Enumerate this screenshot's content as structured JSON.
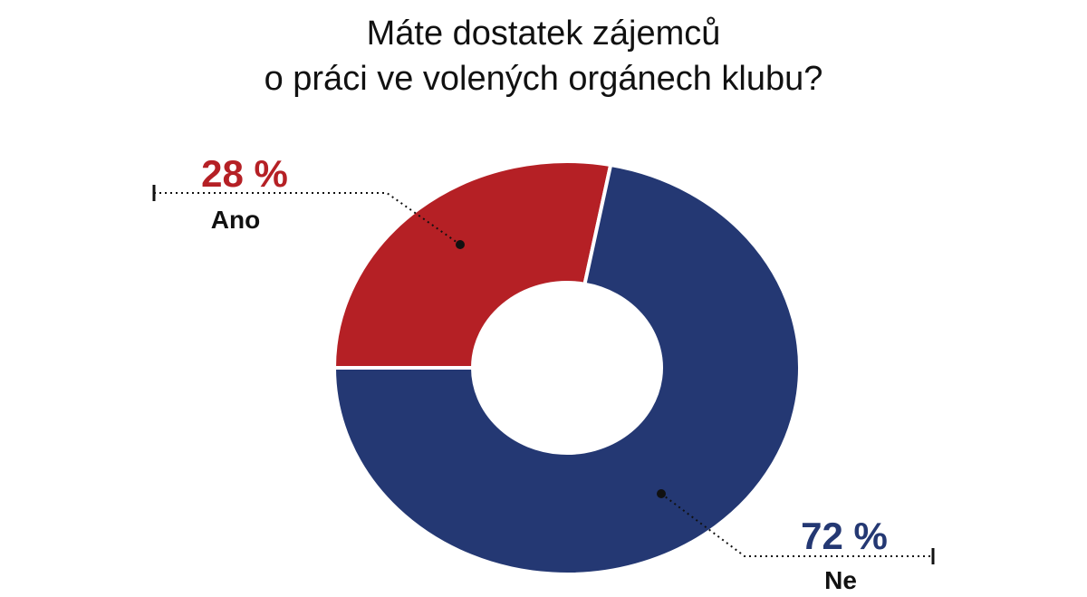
{
  "chart_data": {
    "type": "pie",
    "title_lines": [
      "Máte dostatek zájemců",
      "o práci ve volených orgánech klubu?"
    ],
    "slices": [
      {
        "label": "Ano",
        "value": 28,
        "display": "28 %",
        "color": "#b52025"
      },
      {
        "label": "Ne",
        "value": 72,
        "display": "72 %",
        "color": "#243873"
      }
    ],
    "donut": true,
    "legend": "callouts"
  }
}
